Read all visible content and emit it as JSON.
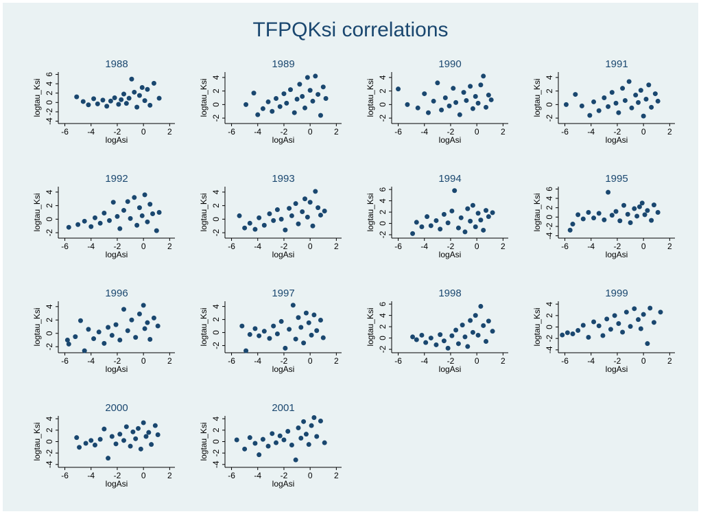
{
  "title": "TFPQKsi correlations",
  "chart_data": [
    {
      "type": "scatter",
      "title": "1988",
      "x_label": "logAsi",
      "y_label": "logtau_Ksi",
      "color": "#1a476f",
      "xlim": [
        -6.5,
        2.4
      ],
      "xticks": [
        -6,
        -4,
        -2,
        0,
        2
      ],
      "ylim": [
        -4.5,
        6.5
      ],
      "yticks": [
        -4,
        -2,
        0,
        2,
        4,
        6
      ],
      "x": [
        -5.1,
        -4.6,
        -4.2,
        -3.8,
        -3.5,
        -3.1,
        -2.8,
        -2.5,
        -2.2,
        -1.9,
        -1.7,
        -1.5,
        -1.3,
        -1.1,
        -0.9,
        -0.7,
        -0.5,
        -0.3,
        -0.1,
        0.1,
        0.3,
        0.5,
        0.8,
        1.2
      ],
      "y": [
        1.2,
        0.2,
        -0.5,
        0.8,
        -0.3,
        0.5,
        -0.8,
        0.3,
        1.0,
        -0.4,
        0.6,
        1.8,
        -0.2,
        0.9,
        5.0,
        2.2,
        -1.0,
        1.5,
        3.2,
        0.4,
        2.8,
        -0.6,
        4.1,
        0.9
      ]
    },
    {
      "type": "scatter",
      "title": "1989",
      "x_label": "logAsi",
      "y_label": "logtau_Ksi",
      "color": "#1a476f",
      "xlim": [
        -6.5,
        2.4
      ],
      "xticks": [
        -6,
        -4,
        -2,
        0,
        2
      ],
      "ylim": [
        -2.8,
        4.8
      ],
      "yticks": [
        -2,
        0,
        2,
        4
      ],
      "x": [
        -4.9,
        -4.3,
        -4.0,
        -3.6,
        -3.2,
        -2.9,
        -2.6,
        -2.3,
        -2.0,
        -1.8,
        -1.5,
        -1.2,
        -1.0,
        -0.8,
        -0.6,
        -0.4,
        -0.2,
        0.0,
        0.2,
        0.4,
        0.6,
        0.8,
        1.0,
        1.2
      ],
      "y": [
        0.0,
        1.7,
        -1.5,
        -0.6,
        0.4,
        -1.0,
        0.9,
        -0.3,
        1.6,
        0.2,
        2.2,
        -1.2,
        0.8,
        3.0,
        1.2,
        -0.5,
        4.0,
        2.1,
        0.5,
        4.2,
        1.5,
        -1.6,
        2.6,
        0.9
      ]
    },
    {
      "type": "scatter",
      "title": "1990",
      "x_label": "logAsi",
      "y_label": "logtau_Ksi",
      "color": "#1a476f",
      "xlim": [
        -6.5,
        2.4
      ],
      "xticks": [
        -6,
        -4,
        -2,
        0,
        2
      ],
      "ylim": [
        -2.8,
        4.8
      ],
      "yticks": [
        -2,
        0,
        2,
        4
      ],
      "x": [
        -6.0,
        -5.3,
        -4.5,
        -4.0,
        -3.7,
        -3.3,
        -3.0,
        -2.7,
        -2.4,
        -2.1,
        -1.8,
        -1.6,
        -1.3,
        -1.0,
        -0.8,
        -0.5,
        -0.3,
        -0.1,
        0.1,
        0.3,
        0.5,
        0.7,
        0.9,
        1.1
      ],
      "y": [
        2.3,
        0.0,
        -0.5,
        1.6,
        -1.2,
        0.5,
        3.2,
        -0.8,
        1.0,
        -0.2,
        2.4,
        0.3,
        -1.5,
        1.8,
        0.6,
        2.7,
        -0.6,
        1.2,
        0.2,
        2.9,
        4.2,
        -0.4,
        1.4,
        0.7
      ]
    },
    {
      "type": "scatter",
      "title": "1991",
      "x_label": "logAsi",
      "y_label": "logtau_Ksi",
      "color": "#1a476f",
      "xlim": [
        -6.5,
        2.4
      ],
      "xticks": [
        -6,
        -4,
        -2,
        0,
        2
      ],
      "ylim": [
        -2.8,
        4.8
      ],
      "yticks": [
        -2,
        0,
        2,
        4
      ],
      "x": [
        -5.9,
        -5.2,
        -4.7,
        -4.1,
        -3.8,
        -3.4,
        -3.0,
        -2.7,
        -2.4,
        -2.1,
        -1.9,
        -1.6,
        -1.4,
        -1.1,
        -0.9,
        -0.6,
        -0.4,
        -0.2,
        0.0,
        0.2,
        0.4,
        0.6,
        0.9,
        1.1
      ],
      "y": [
        0.0,
        1.5,
        -0.2,
        -1.6,
        0.4,
        -0.9,
        1.0,
        -0.3,
        1.8,
        0.2,
        -1.2,
        2.4,
        0.6,
        3.4,
        -0.5,
        1.4,
        0.3,
        2.1,
        -1.7,
        0.8,
        2.9,
        -0.4,
        1.6,
        0.5
      ]
    },
    {
      "type": "scatter",
      "title": "1992",
      "x_label": "logAsi",
      "y_label": "logtau_Ksi",
      "color": "#1a476f",
      "xlim": [
        -6.5,
        2.4
      ],
      "xticks": [
        -6,
        -4,
        -2,
        0,
        2
      ],
      "ylim": [
        -2.8,
        4.8
      ],
      "yticks": [
        -2,
        0,
        2,
        4
      ],
      "x": [
        -5.7,
        -5.0,
        -4.5,
        -4.0,
        -3.7,
        -3.3,
        -3.0,
        -2.6,
        -2.3,
        -2.0,
        -1.8,
        -1.5,
        -1.2,
        -1.0,
        -0.7,
        -0.5,
        -0.3,
        -0.1,
        0.1,
        0.3,
        0.5,
        0.7,
        1.0,
        1.2
      ],
      "y": [
        -1.2,
        -0.8,
        -0.3,
        -1.1,
        0.2,
        -0.6,
        0.9,
        -0.2,
        2.5,
        0.4,
        -1.4,
        1.3,
        2.6,
        0.1,
        3.2,
        -0.9,
        1.7,
        0.5,
        3.6,
        -0.4,
        2.2,
        0.8,
        -1.7,
        1.0
      ]
    },
    {
      "type": "scatter",
      "title": "1993",
      "x_label": "logAsi",
      "y_label": "logtau_Ksi",
      "color": "#1a476f",
      "xlim": [
        -6.5,
        2.4
      ],
      "xticks": [
        -6,
        -4,
        -2,
        0,
        2
      ],
      "ylim": [
        -2.8,
        4.8
      ],
      "yticks": [
        -2,
        0,
        2,
        4
      ],
      "x": [
        -5.4,
        -5.0,
        -4.6,
        -4.2,
        -3.9,
        -3.5,
        -3.1,
        -2.8,
        -2.5,
        -2.2,
        -1.9,
        -1.6,
        -1.4,
        -1.1,
        -0.9,
        -0.6,
        -0.4,
        -0.2,
        0.0,
        0.2,
        0.4,
        0.6,
        0.8,
        1.1
      ],
      "y": [
        0.5,
        -1.3,
        -0.6,
        -1.5,
        0.2,
        -0.9,
        0.8,
        -0.2,
        1.4,
        0.0,
        -1.6,
        1.6,
        0.5,
        2.3,
        -0.7,
        1.1,
        3.0,
        0.3,
        2.5,
        -1.0,
        4.1,
        1.7,
        0.6,
        1.2
      ]
    },
    {
      "type": "scatter",
      "title": "1994",
      "x_label": "logAsi",
      "y_label": "logtau_Ksi",
      "color": "#1a476f",
      "xlim": [
        -6.5,
        2.4
      ],
      "xticks": [
        -6,
        -4,
        -2,
        0,
        2
      ],
      "ylim": [
        -2.6,
        6.5
      ],
      "yticks": [
        -2,
        0,
        2,
        4,
        6
      ],
      "x": [
        -4.9,
        -4.6,
        -4.2,
        -3.8,
        -3.5,
        -3.1,
        -2.8,
        -2.5,
        -2.2,
        -1.9,
        -1.7,
        -1.4,
        -1.2,
        -0.9,
        -0.7,
        -0.5,
        -0.3,
        -0.1,
        0.1,
        0.3,
        0.5,
        0.7,
        0.9,
        1.2
      ],
      "y": [
        -1.8,
        0.2,
        -0.6,
        1.2,
        -0.4,
        0.5,
        -1.0,
        1.6,
        0.1,
        2.2,
        5.8,
        -0.8,
        1.0,
        -1.5,
        2.6,
        0.4,
        3.2,
        -0.6,
        1.8,
        0.6,
        -1.2,
        2.3,
        1.2,
        1.9
      ]
    },
    {
      "type": "scatter",
      "title": "1995",
      "x_label": "logAsi",
      "y_label": "logtau_Ksi",
      "color": "#1a476f",
      "xlim": [
        -6.5,
        2.4
      ],
      "xticks": [
        -6,
        -4,
        -2,
        0,
        2
      ],
      "ylim": [
        -4.5,
        6.5
      ],
      "yticks": [
        -4,
        -2,
        0,
        2,
        4,
        6
      ],
      "x": [
        -5.6,
        -5.4,
        -5.0,
        -4.6,
        -4.2,
        -3.8,
        -3.4,
        -3.0,
        -2.7,
        -2.4,
        -2.1,
        -1.8,
        -1.5,
        -1.2,
        -1.0,
        -0.7,
        -0.5,
        -0.3,
        -0.1,
        0.1,
        0.3,
        0.6,
        0.8,
        1.1
      ],
      "y": [
        -2.8,
        -1.5,
        0.5,
        -0.4,
        1.0,
        -0.2,
        0.8,
        -0.6,
        5.3,
        0.4,
        1.2,
        -0.8,
        2.5,
        0.6,
        -1.2,
        1.8,
        0.2,
        2.2,
        3.0,
        0.5,
        1.4,
        -0.7,
        2.6,
        1.0
      ]
    },
    {
      "type": "scatter",
      "title": "1996",
      "x_label": "logAsi",
      "y_label": "logtau_Ksi",
      "color": "#1a476f",
      "xlim": [
        -6.5,
        2.4
      ],
      "xticks": [
        -6,
        -4,
        -2,
        0,
        2
      ],
      "ylim": [
        -2.9,
        4.8
      ],
      "yticks": [
        -2,
        0,
        2,
        4
      ],
      "x": [
        -5.8,
        -5.7,
        -5.2,
        -4.8,
        -4.5,
        -4.2,
        -3.8,
        -3.4,
        -3.0,
        -2.7,
        -2.4,
        -2.1,
        -1.8,
        -1.5,
        -1.2,
        -0.9,
        -0.6,
        -0.3,
        0.0,
        0.1,
        0.3,
        0.5,
        0.8,
        1.1
      ],
      "y": [
        -1.0,
        -1.6,
        -0.5,
        1.9,
        -2.6,
        0.6,
        -0.8,
        0.2,
        -1.5,
        0.9,
        -0.3,
        1.3,
        -1.0,
        3.6,
        0.4,
        2.0,
        -0.6,
        2.9,
        4.2,
        0.7,
        1.6,
        -0.9,
        2.3,
        1.1
      ]
    },
    {
      "type": "scatter",
      "title": "1997",
      "x_label": "logAsi",
      "y_label": "logtau_Ksi",
      "color": "#1a476f",
      "xlim": [
        -6.5,
        2.4
      ],
      "xticks": [
        -6,
        -4,
        -2,
        0,
        2
      ],
      "ylim": [
        -3.1,
        4.8
      ],
      "yticks": [
        -2,
        0,
        2,
        4
      ],
      "x": [
        -5.2,
        -4.9,
        -4.6,
        -4.2,
        -3.9,
        -3.5,
        -3.1,
        -2.8,
        -2.5,
        -2.2,
        -1.9,
        -1.6,
        -1.3,
        -1.1,
        -0.9,
        -0.7,
        -0.5,
        -0.3,
        -0.1,
        0.1,
        0.3,
        0.5,
        0.8,
        1.0
      ],
      "y": [
        1.0,
        -2.8,
        -0.3,
        0.6,
        -0.5,
        0.2,
        -0.9,
        1.0,
        -0.2,
        1.7,
        -2.4,
        0.5,
        4.2,
        -1.0,
        2.3,
        0.8,
        -1.6,
        3.0,
        1.5,
        -0.4,
        2.7,
        0.3,
        1.9,
        -0.8
      ]
    },
    {
      "type": "scatter",
      "title": "1998",
      "x_label": "logAsi",
      "y_label": "logtau_Ksi",
      "color": "#1a476f",
      "xlim": [
        -6.5,
        2.4
      ],
      "xticks": [
        -6,
        -4,
        -2,
        0,
        2
      ],
      "ylim": [
        -2.6,
        6.5
      ],
      "yticks": [
        -2,
        0,
        2,
        4,
        6
      ],
      "x": [
        -4.9,
        -4.6,
        -4.2,
        -3.9,
        -3.5,
        -3.1,
        -2.8,
        -2.5,
        -2.2,
        -1.9,
        -1.6,
        -1.4,
        -1.1,
        -0.9,
        -0.7,
        -0.5,
        -0.3,
        -0.1,
        0.1,
        0.3,
        0.5,
        0.7,
        0.9,
        1.2
      ],
      "y": [
        0.2,
        -0.3,
        0.5,
        -0.8,
        0.0,
        -1.2,
        0.6,
        -0.5,
        -1.8,
        0.4,
        1.4,
        -1.0,
        2.3,
        0.2,
        -1.5,
        3.1,
        1.0,
        4.0,
        0.5,
        5.6,
        2.2,
        -0.6,
        3.0,
        1.2
      ]
    },
    {
      "type": "scatter",
      "title": "1999",
      "x_label": "logAsi",
      "y_label": "logtau_Ksi",
      "color": "#1a476f",
      "xlim": [
        -6.5,
        2.4
      ],
      "xticks": [
        -6,
        -4,
        -2,
        0,
        2
      ],
      "ylim": [
        -4.5,
        4.5
      ],
      "yticks": [
        -4,
        -2,
        0,
        2,
        4
      ],
      "x": [
        -6.2,
        -5.8,
        -5.4,
        -5.0,
        -4.6,
        -4.2,
        -3.8,
        -3.4,
        -3.1,
        -2.8,
        -2.5,
        -2.2,
        -1.9,
        -1.6,
        -1.3,
        -1.0,
        -0.7,
        -0.4,
        -0.2,
        0.0,
        0.3,
        0.5,
        0.8,
        1.3
      ],
      "y": [
        -1.4,
        -1.0,
        -1.2,
        -0.6,
        0.3,
        -1.8,
        0.9,
        0.2,
        -1.5,
        1.4,
        -0.4,
        2.0,
        0.6,
        -0.9,
        2.6,
        0.1,
        3.2,
        1.3,
        -0.3,
        2.2,
        -2.9,
        3.3,
        0.8,
        2.6
      ]
    },
    {
      "type": "scatter",
      "title": "2000",
      "x_label": "logAsi",
      "y_label": "logtau_Ksi",
      "color": "#1a476f",
      "xlim": [
        -6.5,
        2.4
      ],
      "xticks": [
        -6,
        -4,
        -2,
        0,
        2
      ],
      "ylim": [
        -4.5,
        4.5
      ],
      "yticks": [
        -4,
        -2,
        0,
        2,
        4
      ],
      "x": [
        -5.1,
        -4.9,
        -4.4,
        -4.0,
        -3.7,
        -3.3,
        -3.0,
        -2.7,
        -2.4,
        -2.1,
        -1.8,
        -1.5,
        -1.3,
        -1.0,
        -0.8,
        -0.6,
        -0.4,
        -0.2,
        0.0,
        0.2,
        0.4,
        0.6,
        0.9,
        1.1
      ],
      "y": [
        0.7,
        -1.0,
        -0.3,
        0.2,
        -0.6,
        0.4,
        2.2,
        -2.9,
        0.9,
        -0.4,
        1.3,
        0.2,
        2.6,
        -0.8,
        1.7,
        0.5,
        2.3,
        -1.3,
        3.3,
        0.9,
        1.6,
        -0.5,
        2.8,
        1.2
      ]
    },
    {
      "type": "scatter",
      "title": "2001",
      "x_label": "logAsi",
      "y_label": "logtau_Ksi",
      "color": "#1a476f",
      "xlim": [
        -6.5,
        2.4
      ],
      "xticks": [
        -6,
        -4,
        -2,
        0,
        2
      ],
      "ylim": [
        -4.5,
        4.5
      ],
      "yticks": [
        -4,
        -2,
        0,
        2,
        4
      ],
      "x": [
        -5.6,
        -5.0,
        -4.6,
        -4.2,
        -3.9,
        -3.6,
        -3.2,
        -2.9,
        -2.6,
        -2.3,
        -2.0,
        -1.7,
        -1.4,
        -1.1,
        -0.9,
        -0.7,
        -0.5,
        -0.3,
        -0.1,
        0.1,
        0.3,
        0.5,
        0.8,
        1.1
      ],
      "y": [
        0.3,
        -1.3,
        0.7,
        -0.3,
        -2.3,
        0.4,
        -0.8,
        1.4,
        -0.2,
        1.0,
        0.3,
        1.8,
        -0.6,
        -3.2,
        2.4,
        0.6,
        3.5,
        1.3,
        -0.5,
        2.8,
        4.2,
        0.9,
        3.6,
        -0.2
      ]
    }
  ]
}
